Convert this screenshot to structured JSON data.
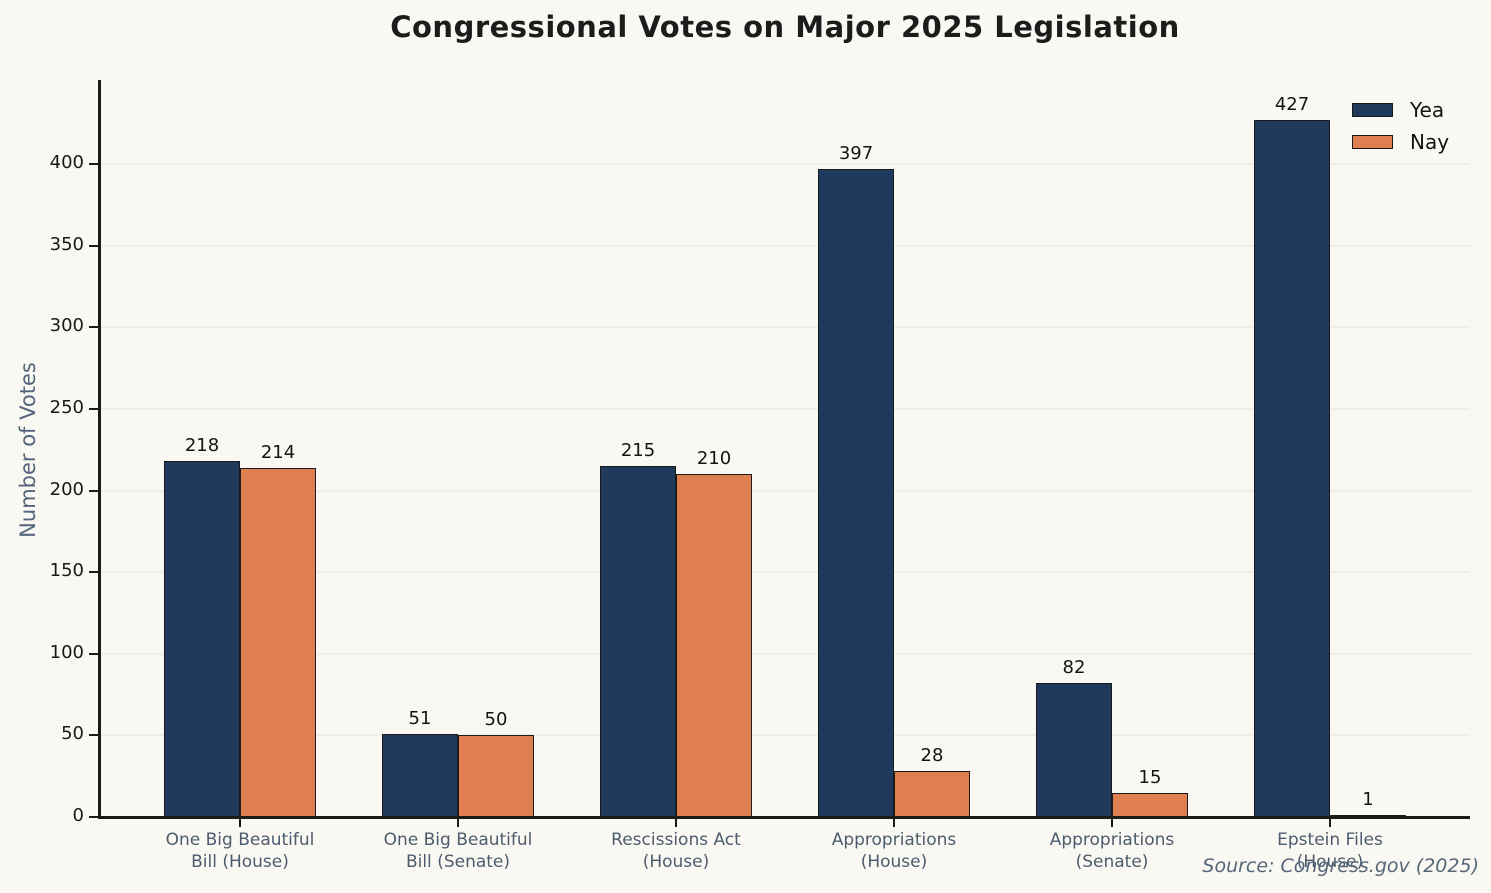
{
  "title": "Congressional Votes on Major 2025 Legislation",
  "source": "Source: Congress.gov (2025)",
  "chart_data": {
    "type": "bar",
    "title": "Congressional Votes on Major 2025 Legislation",
    "xlabel": "",
    "ylabel": "Number of Votes",
    "categories": [
      "One Big Beautiful Bill (House)",
      "One Big Beautiful Bill (Senate)",
      "Rescissions Act (House)",
      "Appropriations (House)",
      "Appropriations (Senate)",
      "Epstein Files (House)"
    ],
    "category_lines": [
      [
        "One Big Beautiful",
        "Bill (House)"
      ],
      [
        "One Big Beautiful",
        "Bill (Senate)"
      ],
      [
        "Rescissions Act",
        "(House)"
      ],
      [
        "Appropriations",
        "(House)"
      ],
      [
        "Appropriations",
        "(Senate)"
      ],
      [
        "Epstein Files",
        "(House)"
      ]
    ],
    "series": [
      {
        "name": "Yea",
        "color": "#1f3a5c",
        "values": [
          218,
          51,
          215,
          397,
          82,
          427
        ]
      },
      {
        "name": "Nay",
        "color": "#df7e4e",
        "values": [
          214,
          50,
          210,
          28,
          15,
          1
        ]
      }
    ],
    "yticks": [
      0,
      50,
      100,
      150,
      200,
      250,
      300,
      350,
      400
    ],
    "ylim": [
      0,
      451
    ],
    "grid": true,
    "legend_position": "upper right",
    "source": "Source: Congress.gov (2025)",
    "colors": {
      "background": "#faf8f2",
      "bar_edge": "#1a1a1a",
      "grid": "#efeeea",
      "axis": "#1a1a1a",
      "tick_label": "#191919",
      "category_label": "#4c5c6e",
      "axis_title": "#54657c",
      "source_text": "#56677a",
      "title_text": "#1c1c1c"
    }
  }
}
